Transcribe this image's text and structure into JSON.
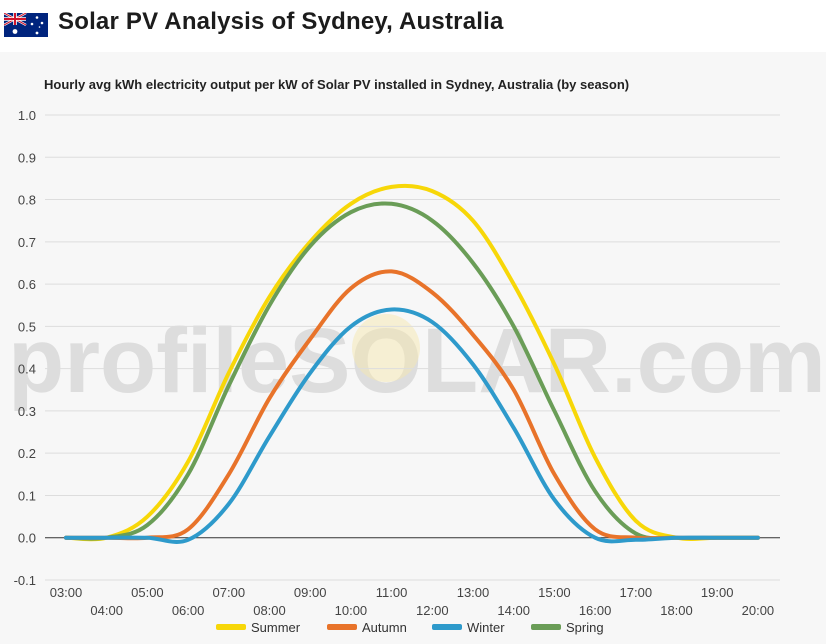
{
  "header": {
    "title": "Solar PV Analysis of Sydney, Australia",
    "flag_icon": "australia-flag-icon"
  },
  "watermark": "profileSOLAR.com",
  "colors": {
    "summer": "#f7d708",
    "autumn": "#e8732a",
    "winter": "#2e9acb",
    "spring": "#6a9d57",
    "background": "#f7f7f7",
    "grid": "#dddddd"
  },
  "chart_data": {
    "type": "line",
    "title": "Hourly avg kWh electricity output per kW of Solar PV installed in Sydney, Australia (by season)",
    "xlabel": "",
    "ylabel": "",
    "ylim": [
      -0.1,
      1.0
    ],
    "yticks": [
      1.0,
      0.9,
      0.8,
      0.7,
      0.6,
      0.5,
      0.4,
      0.3,
      0.2,
      0.1,
      0.0,
      -0.1
    ],
    "ytick_labels": [
      "1.0",
      "0.9",
      "0.8",
      "0.7",
      "0.6",
      "0.5",
      "0.4",
      "0.3",
      "0.2",
      "0.1",
      "0.0",
      "-0.1"
    ],
    "x": [
      "03:00",
      "04:00",
      "05:00",
      "06:00",
      "07:00",
      "08:00",
      "09:00",
      "10:00",
      "11:00",
      "12:00",
      "13:00",
      "14:00",
      "15:00",
      "16:00",
      "17:00",
      "18:00",
      "19:00",
      "20:00"
    ],
    "grid": true,
    "legend": "bottom",
    "series": [
      {
        "name": "Summer",
        "color": "#f7d708",
        "values": [
          0.0,
          0.0,
          0.05,
          0.18,
          0.39,
          0.57,
          0.7,
          0.79,
          0.83,
          0.82,
          0.75,
          0.6,
          0.41,
          0.19,
          0.04,
          0.0,
          0.0,
          0.0
        ]
      },
      {
        "name": "Autumn",
        "color": "#e8732a",
        "values": [
          0.0,
          0.0,
          0.0,
          0.02,
          0.15,
          0.33,
          0.47,
          0.59,
          0.63,
          0.58,
          0.48,
          0.35,
          0.15,
          0.02,
          0.0,
          0.0,
          0.0,
          0.0
        ]
      },
      {
        "name": "Winter",
        "color": "#2e9acb",
        "values": [
          0.0,
          0.0,
          0.0,
          -0.005,
          0.08,
          0.24,
          0.39,
          0.5,
          0.54,
          0.51,
          0.41,
          0.26,
          0.09,
          0.0,
          -0.005,
          0.0,
          0.0,
          0.0
        ]
      },
      {
        "name": "Spring",
        "color": "#6a9d57",
        "values": [
          0.0,
          0.0,
          0.03,
          0.15,
          0.36,
          0.55,
          0.69,
          0.77,
          0.79,
          0.75,
          0.65,
          0.5,
          0.3,
          0.11,
          0.01,
          0.0,
          0.0,
          0.0
        ]
      }
    ]
  }
}
